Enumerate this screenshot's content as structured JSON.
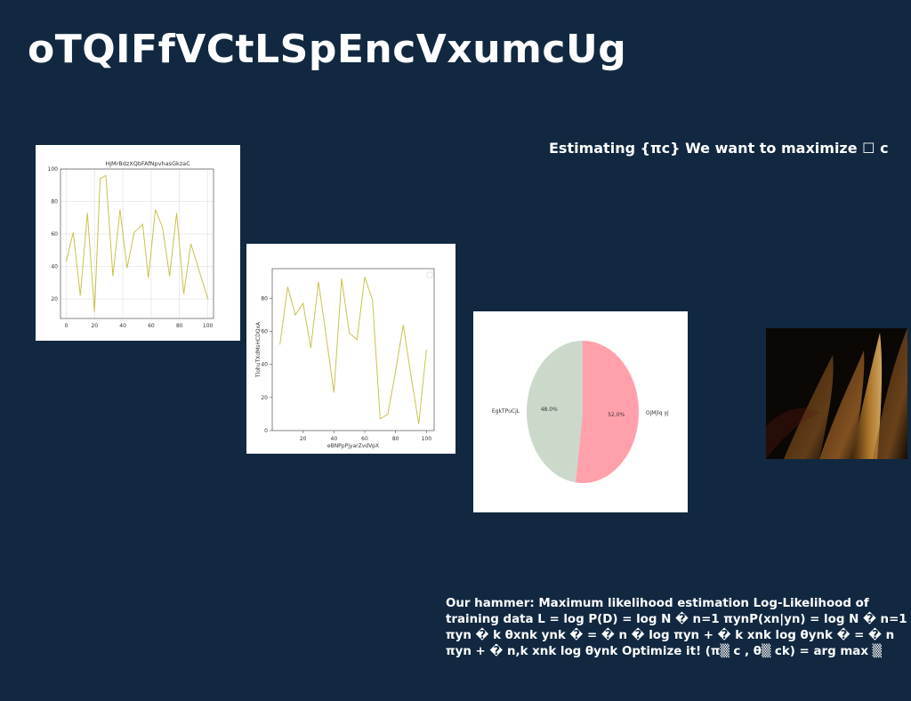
{
  "slide": {
    "title": "oTQIFfVCtLSpEncVxumcUg",
    "heading": "Estimating {πc} We want to maximize ☐ c",
    "body": "Our hammer: Maximum likelihood estimation Log-Likelihood of training data L = log P(D) = log N � n=1 πynP(xn|yn) = log N � n=1 πyn � k θxnk ynk � = � n � log πyn + � k xnk log θynk � = � n πyn + � n,k xnk log θynk Optimize it! (π▒ c , θ▒ ck) = arg max ▒",
    "background_color": "#112840",
    "photo_icon": "abstract-photo"
  },
  "chart_data": [
    {
      "type": "line",
      "title": "HjMrBdzXQbFAfNpvhasGkzaC",
      "xlabel": "",
      "ylabel": "",
      "x": [
        0,
        4,
        8,
        12,
        16,
        20,
        24,
        28,
        32,
        36,
        40,
        44,
        48,
        52,
        56,
        60,
        64,
        68,
        72,
        76,
        80,
        84,
        88,
        92,
        96,
        100
      ],
      "series": [
        {
          "values": [
            43,
            61,
            22,
            73,
            12,
            94,
            96,
            34,
            75,
            39,
            61,
            66,
            33,
            75,
            64,
            34,
            73,
            23,
            54,
            20
          ],
          "x": [
            0,
            5,
            10,
            15,
            20,
            24,
            28,
            33,
            38,
            43,
            48,
            54,
            58,
            63,
            68,
            73,
            78,
            83,
            88,
            100
          ],
          "color": "#c8c34a"
        }
      ],
      "xlim": [
        -4,
        104
      ],
      "ylim": [
        8,
        100
      ],
      "xticks": [
        "0",
        "20",
        "40",
        "60",
        "80",
        "100"
      ],
      "yticks": [
        "20",
        "40",
        "60",
        "80",
        "100"
      ],
      "grid": true
    },
    {
      "type": "line",
      "title": "",
      "xlabel": "eBNPpPjyarZvdVpX",
      "ylabel": "TlohuTXdMsHCDQxA",
      "series": [
        {
          "x": [
            5,
            10,
            15,
            20,
            25,
            30,
            35,
            40,
            45,
            50,
            55,
            60,
            65,
            70,
            75,
            80,
            85,
            90,
            95,
            100
          ],
          "values": [
            52,
            87,
            70,
            77,
            50,
            90,
            57,
            23,
            92,
            59,
            55,
            93,
            79,
            7,
            10,
            36,
            64,
            33,
            4,
            49
          ],
          "color": "#c8c34a"
        }
      ],
      "xlim": [
        0,
        105
      ],
      "ylim": [
        0,
        98
      ],
      "xticks": [
        "20",
        "40",
        "60",
        "80",
        "100"
      ],
      "yticks": [
        "0",
        "20",
        "40",
        "60",
        "80"
      ],
      "legend": "top-right",
      "grid": false
    },
    {
      "type": "pie",
      "labels": [
        "OjMjlq yj",
        "EgkTPuCjL"
      ],
      "values": [
        52.0,
        48.0
      ],
      "value_labels": [
        "52.0%",
        "48.0%"
      ],
      "colors": [
        "#ffa0aa",
        "#cbd9cb"
      ]
    }
  ]
}
